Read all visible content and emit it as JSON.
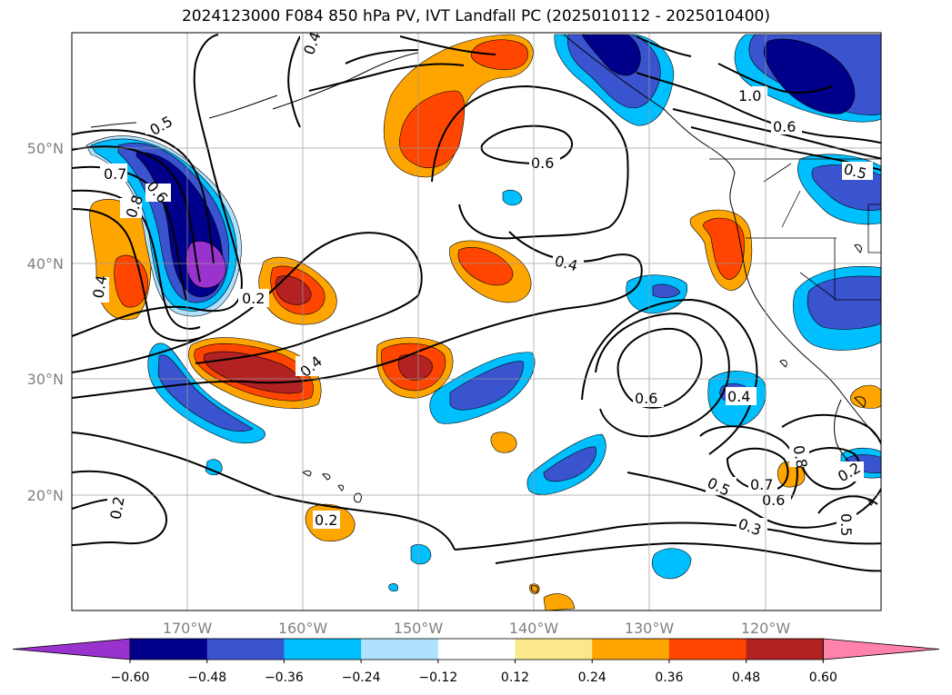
{
  "title": "2024123000 F084 850 hPa PV, IVT Landfall PC (2025010112 - 2025010400)",
  "map": {
    "lon_ticks": [
      "170°W",
      "160°W",
      "150°W",
      "140°W",
      "130°W",
      "120°W"
    ],
    "lat_ticks": [
      "50°N",
      "40°N",
      "30°N",
      "20°N"
    ]
  },
  "contour_labels": [
    "0.5",
    "0.7",
    "0.6",
    "0.8",
    "0.4",
    "0.2",
    "0.4",
    "0.6",
    "0.4",
    "1.0",
    "0.6",
    "0.5",
    "0.6",
    "0.4",
    "0.5",
    "0.7",
    "0.6",
    "0.8",
    "0.2",
    "0.5",
    "0.3",
    "0.2",
    "0.2",
    "0.4"
  ],
  "colorbar": {
    "labels": [
      "−0.60",
      "−0.48",
      "−0.36",
      "−0.24",
      "−0.12",
      "0.12",
      "0.24",
      "0.36",
      "0.48",
      "0.60"
    ],
    "colors": [
      "#9a32cd",
      "#00008b",
      "#3a54d0",
      "#00bfff",
      "#b0e2ff",
      "#ffffff",
      "#fbe88a",
      "#ffa500",
      "#ff4500",
      "#b22222",
      "#ff82ab"
    ]
  }
}
